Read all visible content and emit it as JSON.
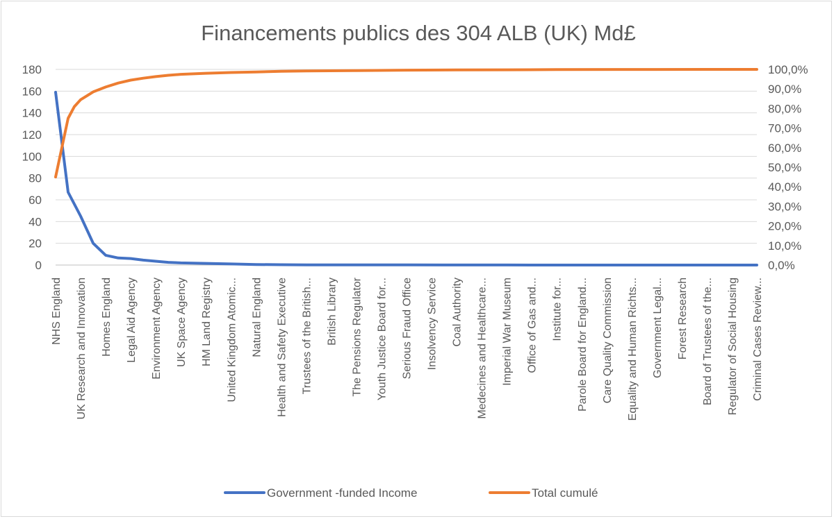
{
  "chart_data": {
    "type": "line",
    "title": "Financements publics des 304 ALB (UK) Md£",
    "categories": [
      "NHS England",
      "UK Research and Innovation",
      "Homes England",
      "Legal Aid Agency",
      "Environment Agency",
      "UK Space Agency",
      "HM Land Registry",
      "United Kingdom Atomic...",
      "Natural England",
      "Health and Safety Executive",
      "Trustees of the British...",
      "British Library",
      "The Pensions Regulator",
      "Youth Justice Board for...",
      "Serious Fraud Office",
      "Insolvency Service",
      "Coal Authority",
      "Medecines and Healthcare...",
      "Imperial War Museum",
      "Office of Gas and...",
      "Institute for...",
      "Parole Board for England...",
      "Care Quality Commission",
      "Equality and Human Richts...",
      "Government Legal...",
      "Forest Research",
      "Board of Trustees of the...",
      "Regulator of Social Housing",
      "Criminal Cases Review..."
    ],
    "y_left": {
      "min": 0,
      "max": 180,
      "ticks": [
        0,
        20,
        40,
        60,
        80,
        100,
        120,
        140,
        160,
        180
      ]
    },
    "y_right": {
      "min": 0,
      "max": 100,
      "ticks": [
        "0,0%",
        "10,0%",
        "20,0%",
        "30,0%",
        "40,0%",
        "50,0%",
        "60,0%",
        "70,0%",
        "80,0%",
        "90,0%",
        "100,0%"
      ]
    },
    "grid": "horizontal",
    "legend_position": "bottom",
    "series": [
      {
        "name": "Government -funded Income",
        "axis": "left",
        "color": "#4472c4",
        "x": [
          0,
          0.5,
          1,
          1.5,
          2,
          2.5,
          3,
          3.5,
          4,
          4.5,
          5,
          6,
          7,
          8,
          9,
          10,
          12,
          14,
          16,
          18,
          20,
          24,
          28
        ],
        "values": [
          159,
          67,
          45,
          20,
          9,
          6.5,
          6,
          4.5,
          3.5,
          2.5,
          2,
          1.5,
          1,
          0.5,
          0.3,
          0.2,
          0.1,
          0.1,
          0.05,
          0.05,
          0.02,
          0.02,
          0.01
        ]
      },
      {
        "name": "Total cumulé",
        "axis": "right",
        "color": "#ed7d31",
        "x": [
          0,
          0.25,
          0.5,
          0.75,
          1,
          1.5,
          2,
          2.5,
          3,
          3.5,
          4,
          4.5,
          5,
          6,
          7,
          8,
          9,
          10,
          12,
          14,
          16,
          18,
          20,
          24,
          28
        ],
        "values": [
          45,
          60,
          75,
          81,
          84.5,
          88.5,
          91,
          93,
          94.5,
          95.5,
          96.3,
          97,
          97.5,
          98,
          98.4,
          98.7,
          99,
          99.2,
          99.4,
          99.6,
          99.7,
          99.8,
          99.9,
          99.95,
          100
        ]
      }
    ]
  }
}
